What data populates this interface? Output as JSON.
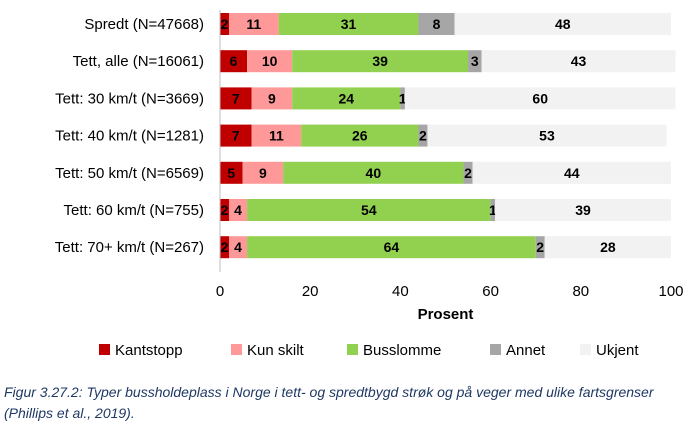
{
  "chart_data": {
    "type": "bar",
    "orientation": "horizontal",
    "stacked": true,
    "categories": [
      "Spredt (N=47668)",
      "Tett, alle (N=16061)",
      "Tett: 30 km/t (N=3669)",
      "Tett: 40 km/t (N=1281)",
      "Tett: 50 km/t (N=6569)",
      "Tett: 60 km/t (N=755)",
      "Tett: 70+ km/t (N=267)"
    ],
    "series": [
      {
        "name": "Kantstopp",
        "color": "#c00000",
        "values": [
          2,
          6,
          7,
          7,
          5,
          2,
          2
        ]
      },
      {
        "name": "Kun skilt",
        "color": "#ff9999",
        "values": [
          11,
          10,
          9,
          11,
          9,
          4,
          4
        ]
      },
      {
        "name": "Busslomme",
        "color": "#92d050",
        "values": [
          31,
          39,
          24,
          26,
          40,
          54,
          64
        ]
      },
      {
        "name": "Annet",
        "color": "#a6a6a6",
        "values": [
          8,
          3,
          1,
          2,
          2,
          1,
          2
        ]
      },
      {
        "name": "Ukjent",
        "color": "#f2f2f2",
        "values": [
          48,
          43,
          60,
          53,
          44,
          39,
          28
        ]
      }
    ],
    "xlabel": "Prosent",
    "xlim": [
      0,
      100
    ],
    "xticks": [
      0,
      20,
      40,
      60,
      80,
      100
    ],
    "grid": false,
    "legend_position": "bottom"
  },
  "caption": "Figur 3.27.2: Typer bussholdeplass i Norge i tett- og spredtbygd strøk og på veger med ulike fartsgrenser (Phillips et al., 2019)."
}
